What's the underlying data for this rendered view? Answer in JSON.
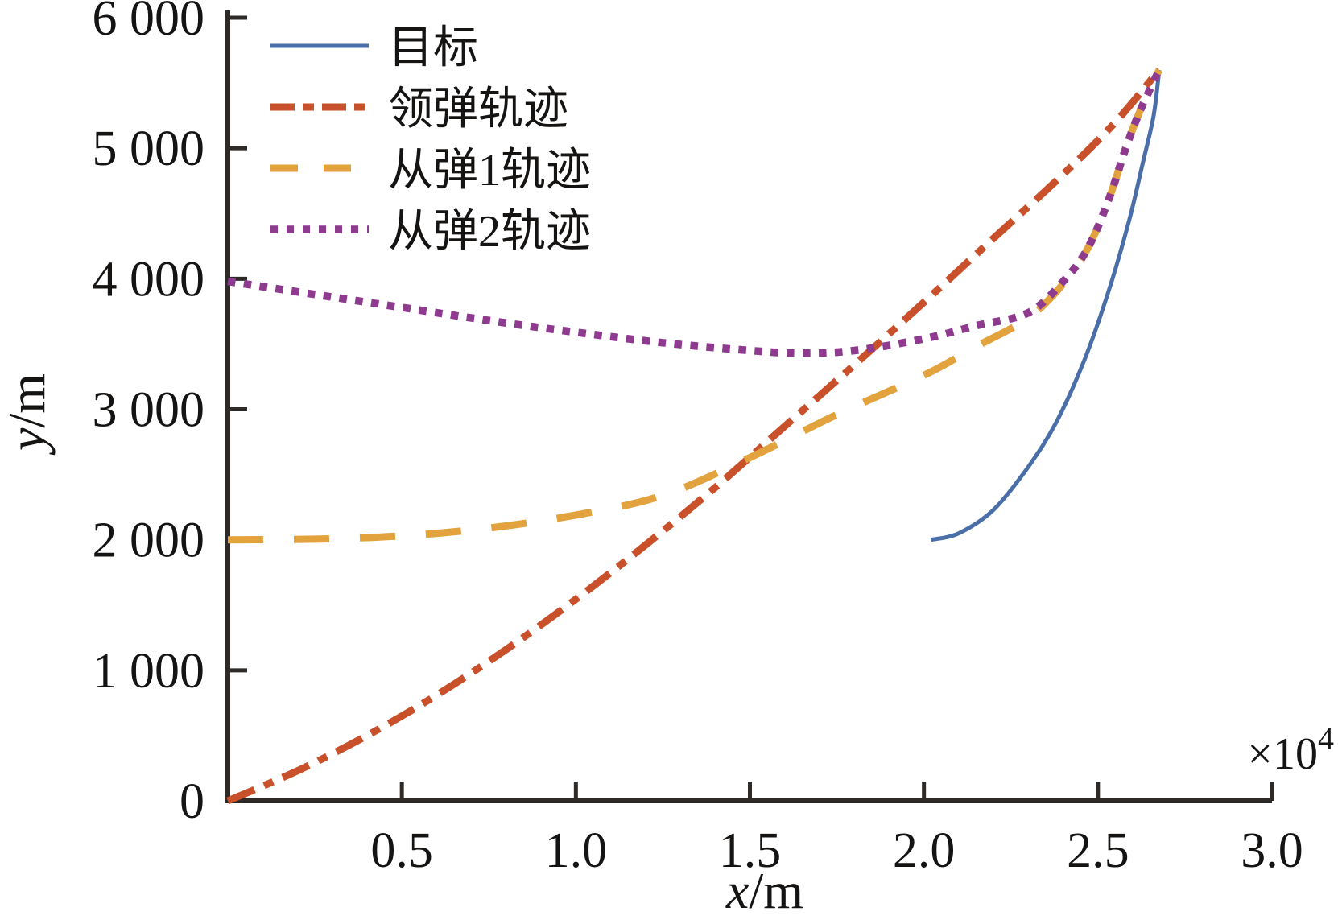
{
  "chart": {
    "background": "#ffffff",
    "axis_color": "#2d2a28",
    "text_color": "#161412",
    "ylabel_var": "y",
    "label_sep": "/",
    "ylabel_unit": "m",
    "xlabel_var": "x",
    "xlabel_unit": "m",
    "x_multiplier_base": "×10",
    "x_multiplier_exp": "4"
  },
  "chart_data": {
    "type": "line",
    "title": "",
    "xlabel": "x/m",
    "ylabel": "y/m",
    "x_unit_note": "x values are in units of 10^4 m (axis shows ×10⁴)",
    "xlim": [
      0,
      3.0
    ],
    "ylim": [
      0,
      6000
    ],
    "grid": false,
    "legend_position": "top-left",
    "x_tick_values": [
      0.5,
      1.0,
      1.5,
      2.0,
      2.5,
      3.0
    ],
    "x_tick_labels": [
      "0.5",
      "1.0",
      "1.5",
      "2.0",
      "2.5",
      "3.0"
    ],
    "y_tick_values": [
      0,
      1000,
      2000,
      3000,
      4000,
      5000,
      6000
    ],
    "y_tick_labels": [
      "0",
      "1 000",
      "2 000",
      "3 000",
      "4 000",
      "5 000",
      "6 000"
    ],
    "series": [
      {
        "name": "目标",
        "color": "#4a6fa8",
        "line_style": "solid",
        "line_width": 5,
        "dash": "",
        "legend_dash": "",
        "points": [
          [
            2.02,
            2000
          ],
          [
            2.1,
            2050
          ],
          [
            2.2,
            2230
          ],
          [
            2.3,
            2560
          ],
          [
            2.38,
            2900
          ],
          [
            2.46,
            3370
          ],
          [
            2.53,
            3900
          ],
          [
            2.59,
            4450
          ],
          [
            2.63,
            4900
          ],
          [
            2.66,
            5250
          ],
          [
            2.676,
            5600
          ]
        ]
      },
      {
        "name": "领弹轨迹",
        "color": "#c8512b",
        "line_style": "dashdot",
        "line_width": 9,
        "dash": "36 13 12 13",
        "legend_dash": "30 10 14 10",
        "points": [
          [
            0,
            0
          ],
          [
            0.2,
            230
          ],
          [
            0.4,
            500
          ],
          [
            0.6,
            810
          ],
          [
            0.8,
            1160
          ],
          [
            1.0,
            1545
          ],
          [
            1.2,
            1960
          ],
          [
            1.4,
            2400
          ],
          [
            1.6,
            2870
          ],
          [
            1.8,
            3340
          ],
          [
            2.0,
            3820
          ],
          [
            2.2,
            4310
          ],
          [
            2.4,
            4800
          ],
          [
            2.55,
            5200
          ],
          [
            2.676,
            5600
          ]
        ]
      },
      {
        "name": "从弹1轨迹",
        "color": "#e2a33e",
        "line_style": "dashed",
        "line_width": 9,
        "dash": "44 38",
        "legend_dash": "34 32",
        "points": [
          [
            0,
            2000
          ],
          [
            0.25,
            2005
          ],
          [
            0.5,
            2030
          ],
          [
            0.75,
            2090
          ],
          [
            1.0,
            2190
          ],
          [
            1.25,
            2340
          ],
          [
            1.5,
            2630
          ],
          [
            1.75,
            2960
          ],
          [
            2.0,
            3260
          ],
          [
            2.15,
            3480
          ],
          [
            2.3,
            3700
          ],
          [
            2.4,
            3960
          ],
          [
            2.47,
            4230
          ],
          [
            2.53,
            4600
          ],
          [
            2.58,
            5000
          ],
          [
            2.62,
            5280
          ],
          [
            2.676,
            5600
          ]
        ]
      },
      {
        "name": "从弹2轨迹",
        "color": "#8e3a8f",
        "line_style": "dotted",
        "line_width": 9.5,
        "dash": "9.5 10.5",
        "legend_dash": "9 11",
        "points": [
          [
            0,
            3980
          ],
          [
            0.25,
            3880
          ],
          [
            0.5,
            3780
          ],
          [
            0.75,
            3680
          ],
          [
            1.0,
            3590
          ],
          [
            1.25,
            3510
          ],
          [
            1.5,
            3450
          ],
          [
            1.65,
            3430
          ],
          [
            1.8,
            3450
          ],
          [
            2.0,
            3540
          ],
          [
            2.15,
            3640
          ],
          [
            2.3,
            3740
          ],
          [
            2.4,
            3980
          ],
          [
            2.47,
            4230
          ],
          [
            2.53,
            4600
          ],
          [
            2.58,
            5000
          ],
          [
            2.62,
            5280
          ],
          [
            2.676,
            5600
          ]
        ]
      }
    ]
  }
}
